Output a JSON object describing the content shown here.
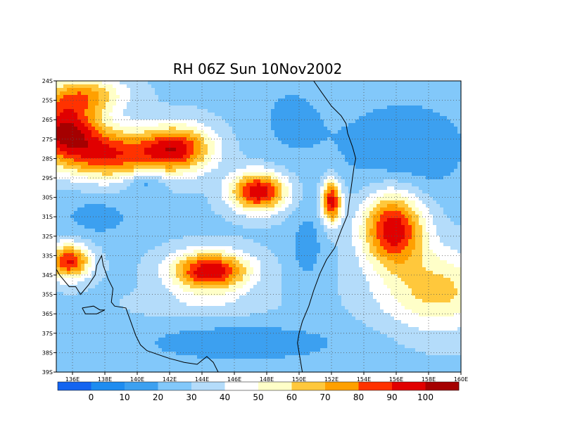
{
  "title": "RH 06Z Sun 10Nov2002",
  "map": {
    "lon_min": 135,
    "lon_max": 160,
    "lat_min": -39,
    "lat_max": -24,
    "x_ticks": [
      {
        "value": 136,
        "label": "136E"
      },
      {
        "value": 138,
        "label": "138E"
      },
      {
        "value": 140,
        "label": "140E"
      },
      {
        "value": 142,
        "label": "142E"
      },
      {
        "value": 144,
        "label": "144E"
      },
      {
        "value": 146,
        "label": "146E"
      },
      {
        "value": 148,
        "label": "148E"
      },
      {
        "value": 150,
        "label": "150E"
      },
      {
        "value": 152,
        "label": "152E"
      },
      {
        "value": 154,
        "label": "154E"
      },
      {
        "value": 156,
        "label": "156E"
      },
      {
        "value": 158,
        "label": "158E"
      },
      {
        "value": 160,
        "label": "160E"
      }
    ],
    "y_ticks": [
      {
        "value": -24,
        "label": "24S"
      },
      {
        "value": -25,
        "label": "25S"
      },
      {
        "value": -26,
        "label": "26S"
      },
      {
        "value": -27,
        "label": "27S"
      },
      {
        "value": -28,
        "label": "28S"
      },
      {
        "value": -29,
        "label": "29S"
      },
      {
        "value": -30,
        "label": "30S"
      },
      {
        "value": -31,
        "label": "31S"
      },
      {
        "value": -32,
        "label": "32S"
      },
      {
        "value": -33,
        "label": "33S"
      },
      {
        "value": -34,
        "label": "34S"
      },
      {
        "value": -35,
        "label": "35S"
      },
      {
        "value": -36,
        "label": "36S"
      },
      {
        "value": -37,
        "label": "37S"
      },
      {
        "value": -38,
        "label": "38S"
      },
      {
        "value": -39,
        "label": "39S"
      }
    ],
    "grid": "dotted"
  },
  "colorbar": {
    "colors": [
      "#1464f0",
      "#1e8cf0",
      "#3ca0f0",
      "#82c8fa",
      "#b4dcfa",
      "#ffffff",
      "#ffffc8",
      "#ffc83c",
      "#ffa000",
      "#ff3200",
      "#e10000",
      "#a50000"
    ],
    "labels": [
      "0",
      "10",
      "20",
      "30",
      "40",
      "50",
      "60",
      "70",
      "80",
      "90",
      "100"
    ]
  },
  "field": {
    "base": 28,
    "features": [
      {
        "lon": 135.5,
        "lat": -26.5,
        "rx": 2.2,
        "ry": 1.6,
        "amp": 70
      },
      {
        "lon": 138.5,
        "lat": -27.8,
        "rx": 3.0,
        "ry": 1.3,
        "amp": 56
      },
      {
        "lon": 142.5,
        "lat": -27.5,
        "rx": 2.2,
        "ry": 1.2,
        "amp": 62
      },
      {
        "lon": 147.5,
        "lat": -29.7,
        "rx": 1.7,
        "ry": 1.0,
        "amp": 72
      },
      {
        "lon": 144.5,
        "lat": -33.8,
        "rx": 2.4,
        "ry": 1.0,
        "amp": 72
      },
      {
        "lon": 135.8,
        "lat": -33.3,
        "rx": 1.3,
        "ry": 0.9,
        "amp": 64
      },
      {
        "lon": 152.0,
        "lat": -30.2,
        "rx": 0.6,
        "ry": 1.1,
        "amp": 70
      },
      {
        "lon": 155.8,
        "lat": -31.6,
        "rx": 1.9,
        "ry": 1.9,
        "amp": 70
      },
      {
        "lon": 158.5,
        "lat": -34.8,
        "rx": 3.5,
        "ry": 2.0,
        "amp": 36
      },
      {
        "lon": 136.8,
        "lat": -24.7,
        "rx": 2.5,
        "ry": 0.9,
        "amp": 38
      },
      {
        "lon": 144.0,
        "lat": -35.5,
        "rx": 4.0,
        "ry": 0.8,
        "amp": 10
      },
      {
        "lon": 140.5,
        "lat": -29.2,
        "rx": 1.2,
        "ry": 0.6,
        "amp": -20
      },
      {
        "lon": 137.5,
        "lat": -31.0,
        "rx": 2.5,
        "ry": 1.2,
        "amp": -12
      },
      {
        "lon": 149.5,
        "lat": -26.0,
        "rx": 2.5,
        "ry": 2.5,
        "amp": -10
      },
      {
        "lon": 156.5,
        "lat": -27.5,
        "rx": 4.0,
        "ry": 2.5,
        "amp": -18
      },
      {
        "lon": 146.5,
        "lat": -37.5,
        "rx": 6.5,
        "ry": 1.0,
        "amp": -16
      },
      {
        "lon": 150.5,
        "lat": -32.5,
        "rx": 1.0,
        "ry": 1.8,
        "amp": -14
      }
    ]
  },
  "coastline": [
    [
      [
        150.2,
        -39.0
      ],
      [
        150.0,
        -38.0
      ],
      [
        149.9,
        -37.5
      ],
      [
        150.0,
        -37.0
      ],
      [
        150.2,
        -36.4
      ],
      [
        150.6,
        -35.6
      ],
      [
        150.9,
        -34.8
      ],
      [
        151.3,
        -33.9
      ],
      [
        151.7,
        -33.2
      ],
      [
        152.2,
        -32.6
      ],
      [
        152.6,
        -31.7
      ],
      [
        153.0,
        -30.9
      ],
      [
        153.1,
        -30.2
      ],
      [
        153.2,
        -29.6
      ],
      [
        153.3,
        -29.0
      ],
      [
        153.4,
        -28.4
      ],
      [
        153.5,
        -28.0
      ],
      [
        153.3,
        -27.4
      ],
      [
        153.0,
        -26.7
      ],
      [
        152.9,
        -26.2
      ],
      [
        152.6,
        -25.8
      ],
      [
        152.0,
        -25.3
      ],
      [
        151.4,
        -24.6
      ],
      [
        150.9,
        -24.0
      ]
    ],
    [
      [
        145.0,
        -39.0
      ],
      [
        144.7,
        -38.5
      ],
      [
        144.3,
        -38.2
      ],
      [
        143.7,
        -38.6
      ],
      [
        142.9,
        -38.5
      ],
      [
        142.0,
        -38.3
      ],
      [
        141.3,
        -38.1
      ],
      [
        140.6,
        -37.9
      ],
      [
        140.2,
        -37.6
      ],
      [
        139.9,
        -37.1
      ],
      [
        139.6,
        -36.4
      ],
      [
        139.3,
        -35.7
      ],
      [
        138.6,
        -35.6
      ],
      [
        138.4,
        -35.4
      ],
      [
        138.5,
        -34.7
      ],
      [
        138.2,
        -34.2
      ],
      [
        137.9,
        -33.5
      ],
      [
        137.8,
        -33.0
      ],
      [
        137.5,
        -33.5
      ],
      [
        137.4,
        -34.0
      ],
      [
        137.0,
        -34.5
      ],
      [
        136.5,
        -35.0
      ],
      [
        136.2,
        -34.6
      ],
      [
        135.8,
        -34.6
      ],
      [
        135.5,
        -34.3
      ],
      [
        135.2,
        -34.0
      ],
      [
        135.0,
        -33.7
      ]
    ],
    [
      [
        136.6,
        -35.7
      ],
      [
        137.3,
        -35.6
      ],
      [
        137.7,
        -35.8
      ],
      [
        138.0,
        -35.8
      ],
      [
        137.5,
        -36.0
      ],
      [
        136.8,
        -36.0
      ],
      [
        136.6,
        -35.7
      ]
    ]
  ]
}
